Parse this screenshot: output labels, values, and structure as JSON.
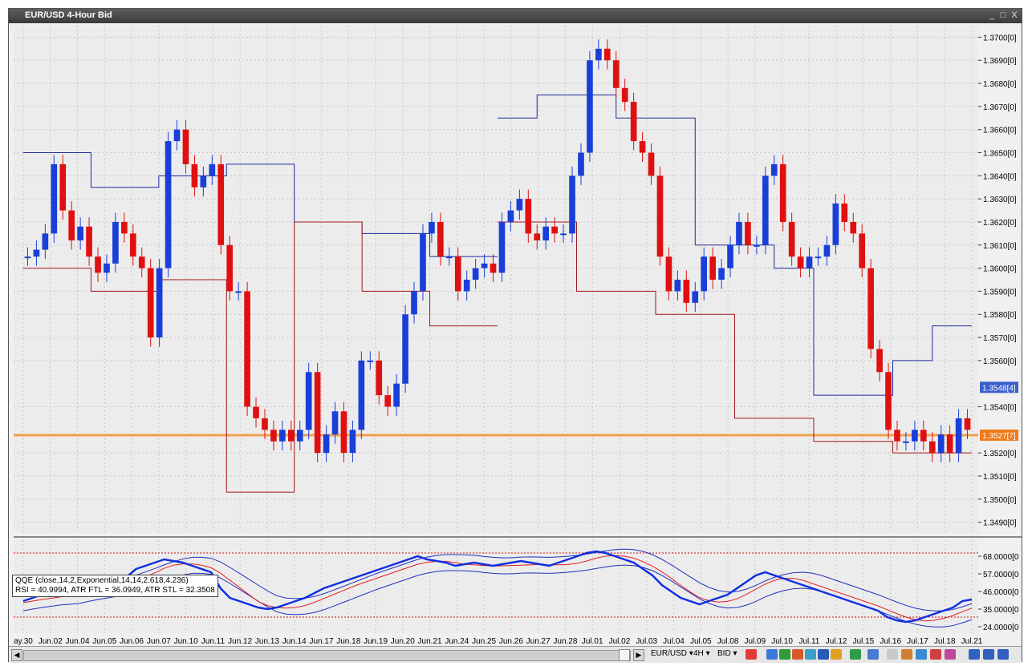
{
  "window": {
    "title": "EUR/USD 4-Hour Bid",
    "controls": [
      "_",
      "□",
      "X"
    ]
  },
  "price_axis": {
    "labels": [
      "1.3700[0]",
      "1.3690[0]",
      "1.3680[0]",
      "1.3670[0]",
      "1.3660[0]",
      "1.3650[0]",
      "1.3640[0]",
      "1.3630[0]",
      "1.3620[0]",
      "1.3610[0]",
      "1.3600[0]",
      "1.3590[0]",
      "1.3580[0]",
      "1.3570[0]",
      "1.3560[0]",
      "1.3540[0]",
      "1.3520[0]",
      "1.3510[0]",
      "1.3500[0]",
      "1.3490[0]"
    ],
    "badges": [
      {
        "text": "1.3548[4]",
        "value": 1.35484,
        "color": "#3a5fcd"
      },
      {
        "text": "1.3527[7]",
        "value": 1.35277,
        "color": "#f07a1a"
      }
    ]
  },
  "indicator_axis": {
    "labels": [
      "68.0000[0",
      "57.0000[0",
      "46.0000[0",
      "35.0000[0",
      "24.0000[0"
    ]
  },
  "time_axis": {
    "labels": [
      "ay.30",
      "Jun.02",
      "Jun.04",
      "Jun.05",
      "Jun.06",
      "Jun.07",
      "Jun.10",
      "Jun.11",
      "Jun.12",
      "Jun.13",
      "Jun.14",
      "Jun.17",
      "Jun.18",
      "Jun.19",
      "Jun.20",
      "Jun.21",
      "Jun.24",
      "Jun.25",
      "Jun.26",
      "Jun.27",
      "Jun.28",
      "Jul.01",
      "Jul.02",
      "Jul.03",
      "Jul.04",
      "Jul.05",
      "Jul.08",
      "Jul.09",
      "Jul.10",
      "Jul.11",
      "Jul.12",
      "Jul.15",
      "Jul.16",
      "Jul.17",
      "Jul.18",
      "Jul.21"
    ]
  },
  "legend": {
    "line1": "QQE (close,14,2,Exponential,14,14,2.618,4.236)",
    "line2": "RSI = 40.9994, ATR FTL = 36.0949, ATR STL = 32.3508"
  },
  "statusbar": {
    "symbol": "EUR/USD",
    "timeframe": "4H",
    "side": "BID"
  },
  "colors": {
    "bull": "#1a3fd8",
    "bear": "#e01010",
    "upper_band": "#1f2a9a",
    "lower_band": "#a01818",
    "hline": "#f0a050",
    "rsi": "#1030e0",
    "ftl": "#e02020",
    "stl": "#2030c0",
    "level": "#d01010"
  },
  "chart_data": {
    "type": "line",
    "price_range": [
      1.3485,
      1.3705
    ],
    "indicator_range": [
      20,
      78
    ],
    "indicator_levels": [
      70,
      30
    ],
    "horizontal_line": 1.35277,
    "closes": [
      1.3605,
      1.3608,
      1.3615,
      1.3645,
      1.3625,
      1.3612,
      1.3618,
      1.3605,
      1.3598,
      1.3602,
      1.362,
      1.3615,
      1.3605,
      1.36,
      1.357,
      1.36,
      1.3655,
      1.366,
      1.3645,
      1.3635,
      1.364,
      1.3645,
      1.361,
      1.359,
      1.359,
      1.354,
      1.3535,
      1.353,
      1.3525,
      1.353,
      1.3525,
      1.353,
      1.3555,
      1.352,
      1.3528,
      1.3538,
      1.352,
      1.353,
      1.356,
      1.356,
      1.3545,
      1.354,
      1.355,
      1.358,
      1.359,
      1.3615,
      1.362,
      1.3605,
      1.3605,
      1.359,
      1.3595,
      1.36,
      1.3602,
      1.3598,
      1.362,
      1.3625,
      1.363,
      1.3615,
      1.3612,
      1.3618,
      1.3615,
      1.3615,
      1.364,
      1.365,
      1.369,
      1.3695,
      1.369,
      1.3678,
      1.3672,
      1.3655,
      1.365,
      1.364,
      1.3605,
      1.359,
      1.3595,
      1.3585,
      1.359,
      1.3605,
      1.3595,
      1.36,
      1.361,
      1.362,
      1.361,
      1.361,
      1.364,
      1.3645,
      1.362,
      1.3605,
      1.36,
      1.3605,
      1.3605,
      1.361,
      1.3628,
      1.362,
      1.3615,
      1.36,
      1.3565,
      1.3555,
      1.353,
      1.3525,
      1.3525,
      1.353,
      1.3525,
      1.352,
      1.3528,
      1.352,
      1.3535,
      1.353
    ],
    "bands": [
      {
        "upper": [
          1.365,
          1.365,
          1.3635,
          1.3635,
          1.364,
          1.364,
          1.3645,
          1.3645,
          1.362,
          1.362,
          1.3615,
          1.3615,
          1.3605,
          1.3605
        ],
        "lower": [
          1.36,
          1.36,
          1.359,
          1.359,
          1.3595,
          1.3595,
          1.3503,
          1.3503,
          1.362,
          1.362,
          1.359,
          1.359,
          1.3575,
          1.3575
        ]
      },
      {
        "upper": [
          1.3665,
          1.3675,
          1.3675,
          1.3665,
          1.3665,
          1.361,
          1.361,
          1.36,
          1.3545,
          1.3545,
          1.356,
          1.3575
        ],
        "lower": [
          1.362,
          1.362,
          1.359,
          1.359,
          1.358,
          1.358,
          1.3535,
          1.3535,
          1.3525,
          1.3525,
          1.352,
          1.352
        ]
      }
    ],
    "rsi": [
      40,
      42,
      44,
      45,
      47,
      46,
      48,
      49,
      50,
      51,
      52,
      55,
      60,
      62,
      64,
      66,
      65,
      64,
      62,
      60,
      58,
      48,
      42,
      40,
      38,
      36,
      35,
      36,
      38,
      40,
      42,
      45,
      48,
      50,
      52,
      54,
      56,
      58,
      60,
      62,
      64,
      66,
      68,
      66,
      65,
      64,
      62,
      63,
      64,
      63,
      62,
      63,
      64,
      65,
      64,
      63,
      62,
      64,
      66,
      68,
      70,
      71,
      70,
      68,
      66,
      64,
      60,
      56,
      50,
      46,
      42,
      40,
      38,
      40,
      42,
      44,
      48,
      52,
      56,
      58,
      56,
      54,
      52,
      50,
      48,
      46,
      44,
      42,
      40,
      38,
      36,
      34,
      30,
      28,
      27,
      28,
      30,
      32,
      34,
      36,
      40,
      41
    ]
  }
}
